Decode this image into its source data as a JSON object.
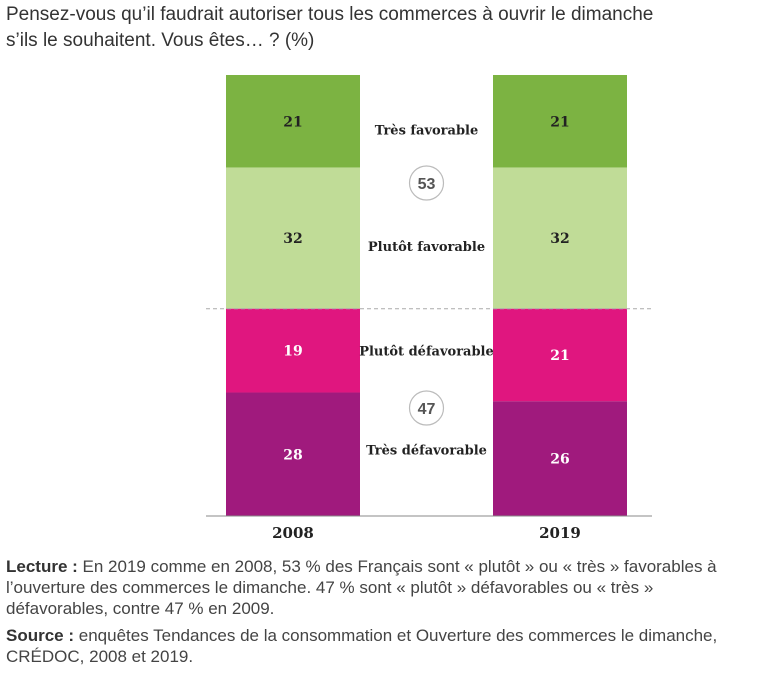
{
  "title": {
    "line1": "Pensez-vous qu’il faudrait autoriser tous les commerces à ouvrir le dimanche",
    "line2": "s’ils le souhaitent. Vous êtes… ? (%)"
  },
  "colors": {
    "tres_favorable": "#7cb342",
    "plutot_favorable": "#c0dc97",
    "plutot_defavorable": "#e0167f",
    "tres_defavorable": "#a01a7d",
    "text_dark": "#222222",
    "text_light": "#ffffff"
  },
  "chart_data": {
    "type": "bar",
    "stacked": true,
    "categories": [
      "2008",
      "2019"
    ],
    "series": [
      {
        "name": "Très favorable",
        "values": [
          21,
          21
        ]
      },
      {
        "name": "Plutôt favorable",
        "values": [
          32,
          32
        ]
      },
      {
        "name": "Plutôt défavorable",
        "values": [
          19,
          21
        ]
      },
      {
        "name": "Très défavorable",
        "values": [
          28,
          26
        ]
      }
    ],
    "totals": [
      {
        "label": "53",
        "group": "favorable"
      },
      {
        "label": "47",
        "group": "défavorable"
      }
    ],
    "ylim": [
      0,
      100
    ],
    "grid": false,
    "legend": "center-between-bars"
  },
  "notes": {
    "lecture_label": "Lecture :",
    "lecture_text": " En 2019 comme en 2008, 53 % des Français sont « plutôt » ou « très » favorables à l’ouverture des commerces le dimanche. 47 % sont « plutôt » défavorables ou « très » défavorables, contre 47 % en 2009.",
    "source_label": "Source :",
    "source_text": " enquêtes Tendances de la consommation et Ouverture des commerces le dimanche, CRÉDOC, 2008 et 2019."
  }
}
